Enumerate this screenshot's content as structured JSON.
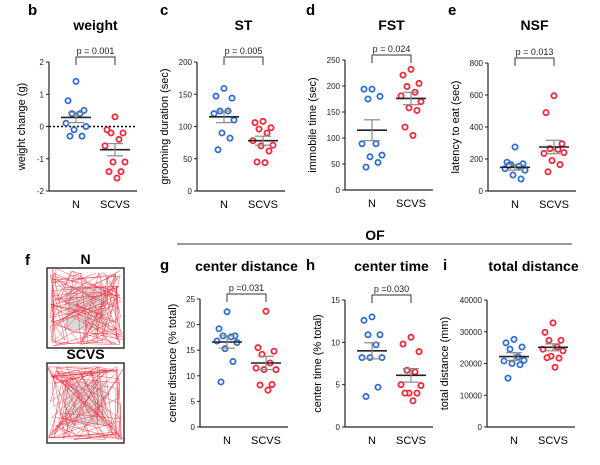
{
  "colors": {
    "N": "#2f6fd0",
    "SCVS": "#f0283a",
    "track": "#f03040",
    "arena_center": "#d9d9d9"
  },
  "section_label": "OF",
  "openfield": {
    "panel_label": "f",
    "groups": [
      "N",
      "SCVS"
    ]
  },
  "chart_data": [
    {
      "type": "scatter",
      "panel_label": "b",
      "title": "weight",
      "ylabel": "weight change (g)",
      "ylim": [
        -2,
        2
      ],
      "yticks": [
        "2",
        "1",
        "0",
        "-1",
        "-2"
      ],
      "ytick_values": [
        2,
        1,
        0,
        -1,
        -2
      ],
      "zero_line": true,
      "p_value": "p = 0.001",
      "categories": [
        "N",
        "SCVS"
      ],
      "series": [
        {
          "name": "N",
          "values": [
            1.4,
            0.8,
            0.5,
            0.4,
            0.4,
            0.1,
            0.0,
            -0.1,
            -0.3,
            -0.3
          ],
          "mean": 0.28,
          "sem": 0.16
        },
        {
          "name": "SCVS",
          "values": [
            0.3,
            -0.1,
            -0.2,
            -0.2,
            -0.4,
            -0.6,
            -1.1,
            -1.1,
            -1.4,
            -1.4,
            -1.6
          ],
          "mean": -0.72,
          "sem": 0.19
        }
      ]
    },
    {
      "type": "scatter",
      "panel_label": "c",
      "title": "ST",
      "ylabel": "grooming duration (sec)",
      "ylim": [
        0,
        200
      ],
      "yticks": [
        "0",
        "50",
        "100",
        "150",
        "200"
      ],
      "ytick_values": [
        0,
        50,
        100,
        150,
        200
      ],
      "p_value": "p = 0.005",
      "categories": [
        "N",
        "SCVS"
      ],
      "series": [
        {
          "name": "N",
          "values": [
            159,
            147,
            144,
            124,
            124,
            120,
            110,
            90,
            82,
            64
          ],
          "mean": 115,
          "sem": 9
        },
        {
          "name": "SCVS",
          "values": [
            108,
            106,
            98,
            96,
            90,
            78,
            71,
            70,
            62,
            45,
            44
          ],
          "mean": 78,
          "sem": 7
        }
      ]
    },
    {
      "type": "scatter",
      "panel_label": "d",
      "title": "FST",
      "ylabel": "immobile time (sec)",
      "ylim": [
        0,
        250
      ],
      "yticks": [
        "0",
        "50",
        "100",
        "150",
        "200",
        "250"
      ],
      "ytick_values": [
        0,
        50,
        100,
        150,
        200,
        250
      ],
      "p_value": "p = 0.024",
      "categories": [
        "N",
        "SCVS"
      ],
      "series": [
        {
          "name": "N",
          "values": [
            194,
            194,
            180,
            175,
            89,
            89,
            67,
            64,
            53,
            44
          ],
          "mean": 115,
          "sem": 20
        },
        {
          "name": "SCVS",
          "values": [
            232,
            221,
            205,
            199,
            188,
            181,
            170,
            158,
            153,
            121,
            105
          ],
          "mean": 176,
          "sem": 12
        }
      ]
    },
    {
      "type": "scatter",
      "panel_label": "e",
      "title": "NSF",
      "ylabel": "latency to eat (sec)",
      "ylim": [
        0,
        800
      ],
      "yticks": [
        "0",
        "200",
        "400",
        "600",
        "800"
      ],
      "ytick_values": [
        0,
        200,
        400,
        600,
        800
      ],
      "p_value": "p = 0.013",
      "categories": [
        "N",
        "SCVS"
      ],
      "series": [
        {
          "name": "N",
          "values": [
            275,
            180,
            170,
            165,
            155,
            140,
            130,
            100,
            75,
            160
          ],
          "mean": 148,
          "sem": 18
        },
        {
          "name": "SCVS",
          "values": [
            595,
            490,
            295,
            265,
            260,
            235,
            240,
            190,
            165,
            120
          ],
          "mean": 275,
          "sem": 42
        }
      ]
    },
    {
      "type": "scatter",
      "panel_label": "g",
      "title": "center distance",
      "ylabel": "center distance (% total)",
      "ylim": [
        0,
        25
      ],
      "yticks": [
        "0",
        "5",
        "10",
        "15",
        "20",
        "25"
      ],
      "ytick_values": [
        0,
        5,
        10,
        15,
        20,
        25
      ],
      "p_value": "p =0.031",
      "categories": [
        "N",
        "SCVS"
      ],
      "series": [
        {
          "name": "N",
          "values": [
            22.5,
            19.2,
            17.8,
            17.8,
            17.6,
            16.8,
            16.5,
            15.3,
            12.8,
            8.8
          ],
          "mean": 16.6,
          "sem": 1.2
        },
        {
          "name": "SCVS",
          "values": [
            22.6,
            15.5,
            14.8,
            14.2,
            12.5,
            11.5,
            11.2,
            11.2,
            8.3,
            8.2,
            7.2
          ],
          "mean": 12.5,
          "sem": 1.3
        }
      ]
    },
    {
      "type": "scatter",
      "panel_label": "h",
      "title": "center time",
      "ylabel": "center time (% total)",
      "ylim": [
        0,
        15
      ],
      "yticks": [
        "0",
        "5",
        "10",
        "15"
      ],
      "ytick_values": [
        0,
        5,
        10,
        15
      ],
      "p_value": "p =0.030",
      "categories": [
        "N",
        "SCVS"
      ],
      "series": [
        {
          "name": "N",
          "values": [
            13,
            12.6,
            10.9,
            10.9,
            9.7,
            8.2,
            8.2,
            8.2,
            4.7,
            3.6
          ],
          "mean": 9.0,
          "sem": 0.95
        },
        {
          "name": "SCVS",
          "values": [
            10.6,
            9.8,
            8.9,
            6.7,
            6.5,
            5.0,
            4.9,
            4.0,
            4.0,
            4.0,
            3.1
          ],
          "mean": 6.1,
          "sem": 0.8
        }
      ]
    },
    {
      "type": "scatter",
      "panel_label": "i",
      "title": "total distance",
      "ylabel": "total distance (mm)",
      "ylim": [
        0,
        40000
      ],
      "yticks": [
        "0",
        "10000",
        "20000",
        "30000",
        "40000"
      ],
      "ytick_values": [
        0,
        10000,
        20000,
        30000,
        40000
      ],
      "p_value": "",
      "categories": [
        "N",
        "SCVS"
      ],
      "series": [
        {
          "name": "N",
          "values": [
            27600,
            26500,
            25200,
            24500,
            22100,
            20800,
            21000,
            20000,
            19600,
            15400
          ],
          "mean": 22200,
          "sem": 1200
        },
        {
          "name": "SCVS",
          "values": [
            32800,
            29800,
            27300,
            27300,
            25200,
            24500,
            24000,
            22300,
            21700,
            21800,
            18800
          ],
          "mean": 25100,
          "sem": 1100
        }
      ]
    }
  ]
}
